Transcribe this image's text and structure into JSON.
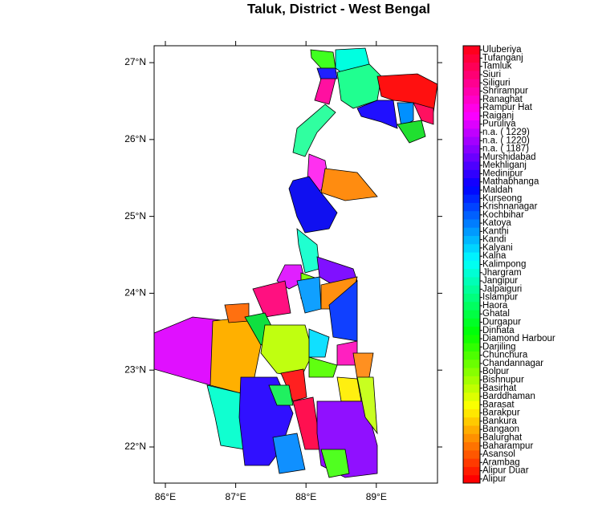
{
  "title": "Taluk, District - West Bengal",
  "map": {
    "xlim": [
      85.84,
      89.87
    ],
    "ylim": [
      21.53,
      27.22
    ],
    "xticks": [
      {
        "value": 86,
        "label": "86°E"
      },
      {
        "value": 87,
        "label": "87°E"
      },
      {
        "value": 88,
        "label": "88°E"
      },
      {
        "value": 89,
        "label": "89°E"
      }
    ],
    "yticks": [
      {
        "value": 22,
        "label": "22°N"
      },
      {
        "value": 23,
        "label": "23°N"
      },
      {
        "value": 24,
        "label": "24°N"
      },
      {
        "value": 25,
        "label": "25°N"
      },
      {
        "value": 26,
        "label": "26°N"
      },
      {
        "value": 27,
        "label": "27°N"
      }
    ]
  },
  "legend": {
    "palette": "rainbow",
    "labels": [
      "Alipur",
      "Alipur Duar",
      "Arambag",
      "Asansol",
      "Baharampur",
      "Balurghat",
      "Bangaon",
      "Bankura",
      "Barakpur",
      "Barasat",
      "Barddhaman",
      "Basirhat",
      "Bishnupur",
      "Bolpur",
      "Chandannagar",
      "Chunchura",
      "Darjiling",
      "Diamond Harbour",
      "Dinhata",
      "Durgapur",
      "Ghatal",
      "Haora",
      "Islampur",
      "Jalpaiguri",
      "Jangipur",
      "Jhargram",
      "Kalimpong",
      "Kalna",
      "Kalyani",
      "Kandi",
      "Kanthi",
      "Katoya",
      "Kochbihar",
      "Krishnanagar",
      "Kurseong",
      "Maldah",
      "Mathabhanga",
      "Medinipur",
      "Mekhliganj",
      "Murshidabad",
      "n.a. ( 1187)",
      "n.a. ( 1220)",
      "n.a. ( 1229)",
      "Puruliya",
      "Raiganj",
      "Rampur Hat",
      "Ranaghat",
      "Shrirampur",
      "Siliguri",
      "Siuri",
      "Tamluk",
      "Tufanganj",
      "Uluberiya"
    ]
  }
}
